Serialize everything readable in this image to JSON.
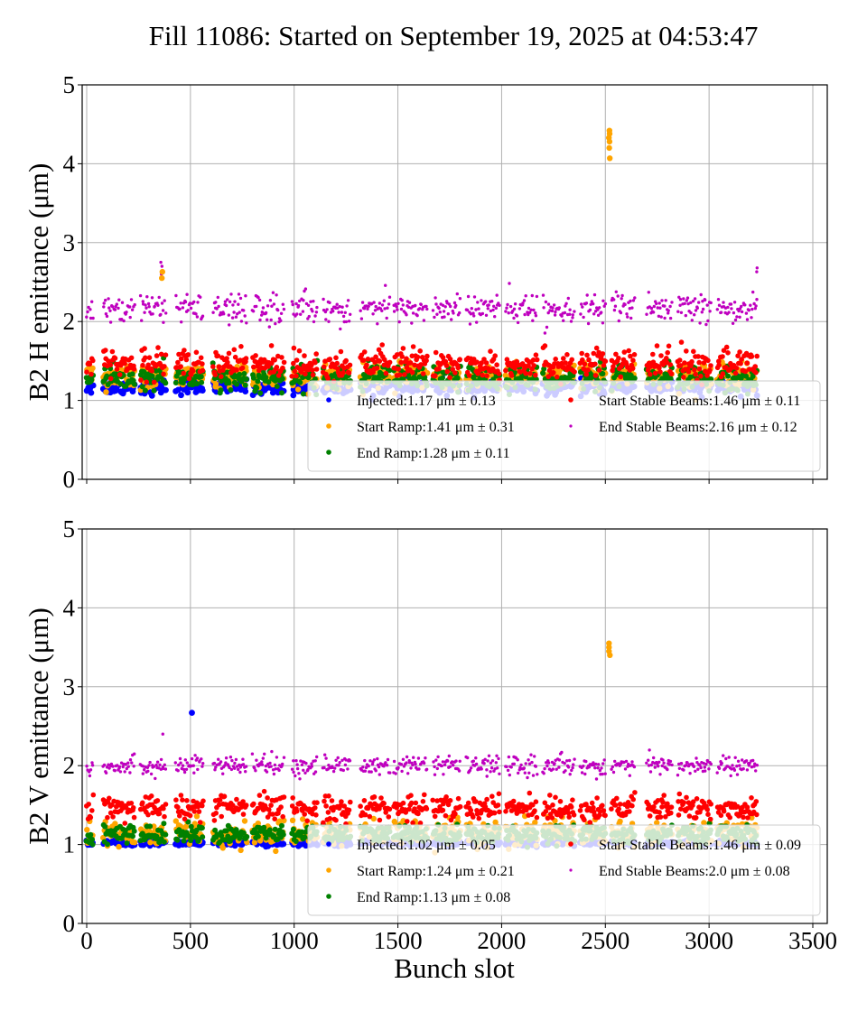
{
  "chart_data": {
    "type": "scatter",
    "title": "Fill 11086: Started on September 19, 2025 at 04:53:47",
    "xlabel": "Bunch slot",
    "xlim": [
      -20,
      3570
    ],
    "x_ticks": [
      0,
      500,
      1000,
      1500,
      2000,
      2500,
      3000,
      3500
    ],
    "x_tick_labels": [
      "0",
      "500",
      "1000",
      "1500",
      "2000",
      "2500",
      "3000",
      "3500"
    ],
    "grid": true,
    "legend_location": "lower-right",
    "trains": [
      [
        0,
        30
      ],
      [
        80,
        230
      ],
      [
        260,
        380
      ],
      [
        430,
        560
      ],
      [
        610,
        770
      ],
      [
        800,
        950
      ],
      [
        990,
        1110
      ],
      [
        1140,
        1270
      ],
      [
        1320,
        1460
      ],
      [
        1480,
        1640
      ],
      [
        1670,
        1800
      ],
      [
        1830,
        1990
      ],
      [
        2020,
        2170
      ],
      [
        2200,
        2350
      ],
      [
        2380,
        2500
      ],
      [
        2530,
        2640
      ],
      [
        2700,
        2820
      ],
      [
        2850,
        3010
      ],
      [
        3040,
        3230
      ]
    ],
    "panels": [
      {
        "name": "B2 H",
        "ylabel": "B2 H emittance (μm)",
        "ylim": [
          0,
          5
        ],
        "y_ticks": [
          0,
          1,
          2,
          3,
          4,
          5
        ],
        "series": [
          {
            "name": "Injected",
            "color": "#0000ff",
            "mean": 1.17,
            "std": 0.13,
            "legend": "Injected:1.17 μm ± 0.13"
          },
          {
            "name": "Start Ramp",
            "color": "#ffa500",
            "mean": 1.41,
            "std": 0.31,
            "legend": "Start Ramp:1.41 μm ± 0.31"
          },
          {
            "name": "End Ramp",
            "color": "#008000",
            "mean": 1.28,
            "std": 0.11,
            "legend": "End Ramp:1.28 μm ± 0.11"
          },
          {
            "name": "Start Stable Beams",
            "color": "#ff0000",
            "mean": 1.46,
            "std": 0.11,
            "legend": "Start Stable Beams:1.46 μm ± 0.11"
          },
          {
            "name": "End Stable Beams",
            "color": "#bf00bf",
            "mean": 2.16,
            "std": 0.12,
            "legend": "End Stable Beams:2.16 μm ± 0.12"
          }
        ],
        "outliers": [
          {
            "series": "Start Ramp",
            "x": 2520,
            "y": [
              4.07,
              4.2,
              4.28,
              4.33,
              4.38,
              4.42
            ]
          },
          {
            "series": "End Stable Beams",
            "x": 360,
            "y": [
              2.6,
              2.7,
              2.75
            ]
          },
          {
            "series": "End Stable Beams",
            "x": 3230,
            "y": [
              2.63,
              2.68
            ]
          },
          {
            "series": "Start Ramp",
            "x": 365,
            "y": [
              2.55,
              2.63
            ]
          }
        ]
      },
      {
        "name": "B2 V",
        "ylabel": "B2 V emittance (μm)",
        "ylim": [
          0,
          5
        ],
        "y_ticks": [
          0,
          1,
          2,
          3,
          4,
          5
        ],
        "series": [
          {
            "name": "Injected",
            "color": "#0000ff",
            "mean": 1.02,
            "std": 0.05,
            "legend": "Injected:1.02 μm ± 0.05"
          },
          {
            "name": "Start Ramp",
            "color": "#ffa500",
            "mean": 1.24,
            "std": 0.21,
            "legend": "Start Ramp:1.24 μm ± 0.21"
          },
          {
            "name": "End Ramp",
            "color": "#008000",
            "mean": 1.13,
            "std": 0.08,
            "legend": "End Ramp:1.13 μm ± 0.08"
          },
          {
            "name": "Start Stable Beams",
            "color": "#ff0000",
            "mean": 1.46,
            "std": 0.09,
            "legend": "Start Stable Beams:1.46 μm ± 0.09"
          },
          {
            "name": "End Stable Beams",
            "color": "#bf00bf",
            "mean": 2.0,
            "std": 0.08,
            "legend": "End Stable Beams:2.0 μm ± 0.08"
          }
        ],
        "outliers": [
          {
            "series": "Start Ramp",
            "x": 2520,
            "y": [
              3.4,
              3.45,
              3.5,
              3.55
            ]
          },
          {
            "series": "Injected",
            "x": 505,
            "y": [
              2.67
            ]
          },
          {
            "series": "End Stable Beams",
            "x": 370,
            "y": [
              2.4
            ]
          }
        ]
      }
    ]
  }
}
